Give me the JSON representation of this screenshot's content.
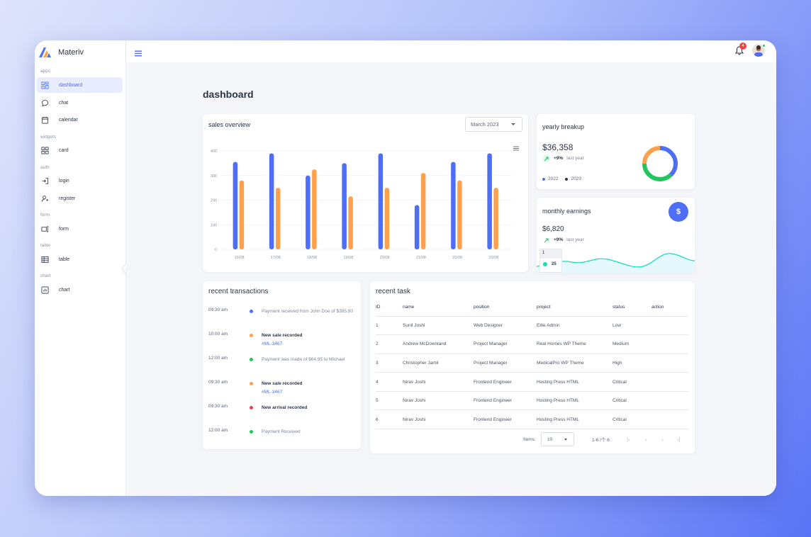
{
  "brand": {
    "name": "Materiv"
  },
  "sidebar": {
    "sections": [
      {
        "label": "apps",
        "items": [
          {
            "label": "dashboard",
            "icon": "dashboard-icon",
            "active": true
          },
          {
            "label": "chat",
            "icon": "chat-icon"
          },
          {
            "label": "calendar",
            "icon": "calendar-icon"
          }
        ]
      },
      {
        "label": "widgets",
        "items": [
          {
            "label": "card",
            "icon": "card-icon"
          }
        ]
      },
      {
        "label": "auth",
        "items": [
          {
            "label": "login",
            "icon": "login-icon"
          },
          {
            "label": "register",
            "icon": "register-icon"
          }
        ]
      },
      {
        "label": "form",
        "items": [
          {
            "label": "form",
            "icon": "form-icon"
          }
        ]
      },
      {
        "label": "table",
        "items": [
          {
            "label": "table",
            "icon": "table-icon"
          }
        ]
      },
      {
        "label": "chart",
        "items": [
          {
            "label": "chart",
            "icon": "chart-icon"
          }
        ]
      }
    ]
  },
  "topbar": {
    "notification_count": "4"
  },
  "page": {
    "title": "dashboard"
  },
  "sales": {
    "title": "sales overview",
    "month_select": "March 2023"
  },
  "chart_data": {
    "type": "bar",
    "categories": [
      "16/08",
      "17/08",
      "18/08",
      "19/08",
      "20/08",
      "21/08",
      "22/08",
      "23/08"
    ],
    "series": [
      {
        "color": "#4d6ef5",
        "values": [
          355,
          390,
          300,
          350,
          390,
          180,
          355,
          390
        ]
      },
      {
        "color": "#ffa04d",
        "values": [
          280,
          250,
          325,
          215,
          250,
          310,
          280,
          250
        ]
      }
    ],
    "yticks": [
      0,
      100,
      200,
      300,
      400
    ],
    "ylim": [
      0,
      400
    ],
    "title": "",
    "xlabel": "",
    "ylabel": ""
  },
  "yearly": {
    "title": "yearly breakup",
    "amount": "$36,358",
    "change": "+9%",
    "change_label": "last year",
    "legend": [
      {
        "label": "2022",
        "color": "#4d6ef5"
      },
      {
        "label": "2023",
        "color": "#2a3547"
      }
    ],
    "donut": [
      {
        "value": 38,
        "color": "#4d6ef5"
      },
      {
        "value": 37,
        "color": "#22c55e"
      },
      {
        "value": 25,
        "color": "#ffa04d"
      }
    ]
  },
  "earnings": {
    "title": "monthly earnings",
    "amount": "$6,820",
    "change": "+9%",
    "change_label": "last year",
    "button_symbol": "$",
    "tooltip_index": "1",
    "tooltip_value": "25"
  },
  "transactions": {
    "title": "recent transactions",
    "items": [
      {
        "time": "09:30 am",
        "color": "#4d6ef5",
        "text": "Payment received from John Doe of $385.90",
        "bold": false,
        "link": ""
      },
      {
        "time": "10:00 am",
        "color": "#ffa04d",
        "text": "New sale recorded",
        "bold": true,
        "link": "#ML-3467"
      },
      {
        "time": "12:00 am",
        "color": "#22c55e",
        "text": "Payment was made of $64.95 to Michael",
        "bold": false,
        "link": ""
      },
      {
        "time": "09:30 am",
        "color": "#ffa04d",
        "text": "New sale recorded",
        "bold": true,
        "link": "#ML-3467"
      },
      {
        "time": "09:30 am",
        "color": "#ef4444",
        "text": "New arrival recorded",
        "bold": true,
        "link": ""
      },
      {
        "time": "12:00 am",
        "color": "#22c55e",
        "text": "Payment Received",
        "bold": false,
        "link": ""
      }
    ]
  },
  "tasks": {
    "title": "recent task",
    "columns": [
      "ID",
      "name",
      "position",
      "project",
      "status",
      "action"
    ],
    "rows": [
      [
        "1",
        "Sunil Joshi",
        "Web Designer",
        "Elite Admin",
        "Low",
        ""
      ],
      [
        "2",
        "Andrew McDownland",
        "Project Manager",
        "Real Homes WP Theme",
        "Medium",
        ""
      ],
      [
        "3",
        "Christopher Jamil",
        "Project Manager",
        "MedicalPro WP Theme",
        "High",
        ""
      ],
      [
        "4",
        "Nirav Joshi",
        "Frontend Engineer",
        "Hosting Press HTML",
        "Critical",
        ""
      ],
      [
        "5",
        "Nirav Joshi",
        "Frontend Engineer",
        "Hosting Press HTML",
        "Critical",
        ""
      ],
      [
        "6",
        "Nirav Joshi",
        "Frontend Engineer",
        "Hosting Press HTML",
        "Critical",
        ""
      ]
    ],
    "items_label": "Items:",
    "page_size": "10",
    "range": "1-6 /个 6"
  }
}
